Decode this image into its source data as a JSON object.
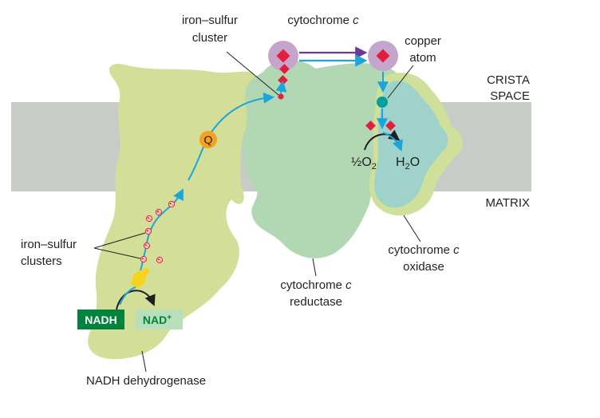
{
  "membrane": {
    "crista_space_line1": "CRISTA",
    "crista_space_line2": "SPACE",
    "matrix": "MATRIX"
  },
  "labels": {
    "iron_sulfur_cluster_line1": "iron–sulfur",
    "iron_sulfur_cluster_line2": "cluster",
    "cytochrome_c_top_prefix": "cytochrome ",
    "cytochrome_c_top_italic": "c",
    "copper_atom_line1": "copper",
    "copper_atom_line2": "atom",
    "iron_sulfur_clusters_line1": "iron–sulfur",
    "iron_sulfur_clusters_line2": "clusters",
    "reductase_line1_prefix": "cytochrome ",
    "reductase_line1_italic": "c",
    "reductase_line2": "reductase",
    "oxidase_line1_prefix": "cytochrome ",
    "oxidase_line1_italic": "c",
    "oxidase_line2": "oxidase",
    "nadh_dehydrogenase": "NADH dehydrogenase",
    "quinone": "Q",
    "half_o2_prefix": "½O",
    "half_o2_sub": "2",
    "water_prefix": "H",
    "water_sub": "2",
    "water_suffix": "O"
  },
  "boxes": {
    "nadh": "NADH",
    "nad_plus": "NAD",
    "nad_plus_sup": "+"
  },
  "colors": {
    "membrane": "#c8ccc7",
    "dehydrogenase": "#d3df99",
    "reductase": "#b1d7b3",
    "oxidase_outer": "#cfe09a",
    "oxidase_inner": "#9fd2cb",
    "cytochrome_c": "#c6a5cd",
    "electron_arrow": "#1ba5db",
    "cyt_transfer_arrow": "#6b3a96",
    "heme": "#e31e3c",
    "quinone": "#f5a31e",
    "copper": "#00a19a",
    "nadh_box": "#00843d",
    "nad_box": "#b7dfb9",
    "nad_text": "#00843d"
  }
}
